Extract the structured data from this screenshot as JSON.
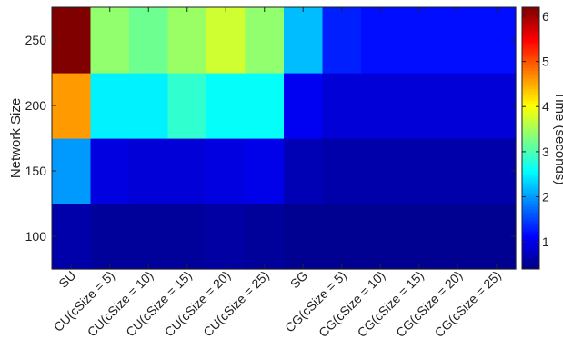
{
  "chart_data": {
    "type": "heatmap",
    "title": "",
    "xlabel": "",
    "ylabel": "Network Size",
    "colorbar_label": "Time (seconds)",
    "colormap": "jet",
    "color_range": [
      0.4,
      6.2
    ],
    "colorbar_ticks": [
      1,
      2,
      3,
      4,
      5,
      6
    ],
    "x_categories": [
      "SU",
      "CU(cSize = 5)",
      "CU(cSize = 10)",
      "CU(cSize = 15)",
      "CU(cSize = 20)",
      "CU(cSize = 25)",
      "SG",
      "CG(cSize = 5)",
      "CG(cSize = 10)",
      "CG(cSize = 15)",
      "CG(cSize = 20)",
      "CG(cSize = 25)"
    ],
    "y_categories": [
      100,
      150,
      200,
      250
    ],
    "values": [
      [
        0.65,
        0.55,
        0.55,
        0.55,
        0.6,
        0.55,
        0.5,
        0.5,
        0.5,
        0.5,
        0.5,
        0.5
      ],
      [
        2.0,
        0.95,
        0.9,
        0.9,
        0.95,
        1.0,
        0.7,
        0.65,
        0.65,
        0.65,
        0.65,
        0.65
      ],
      [
        4.6,
        2.5,
        2.5,
        2.85,
        2.6,
        2.6,
        1.05,
        0.9,
        0.9,
        0.9,
        0.9,
        0.9
      ],
      [
        6.2,
        3.4,
        3.2,
        3.45,
        3.75,
        3.4,
        2.2,
        1.3,
        1.2,
        1.2,
        1.2,
        1.2
      ]
    ]
  }
}
